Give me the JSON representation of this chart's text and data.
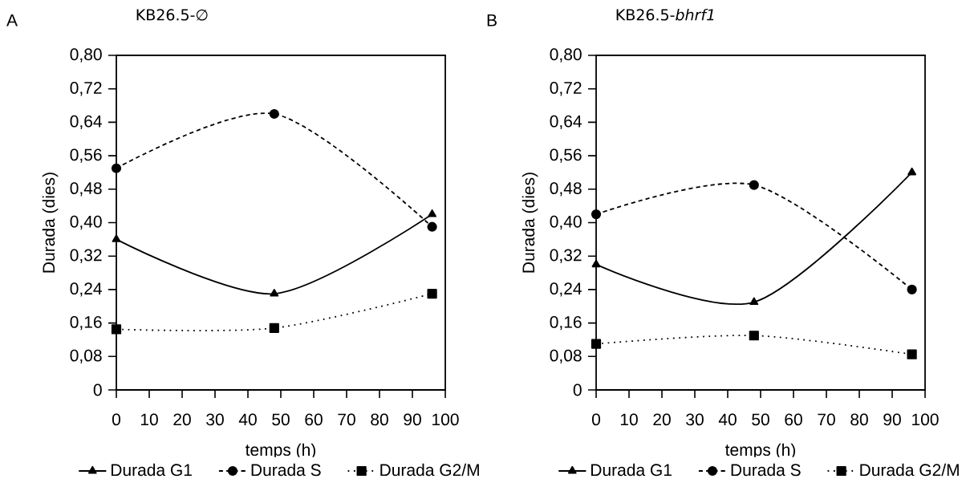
{
  "chart_data": [
    {
      "type": "line",
      "title": "KB26.5-∅",
      "xlabel": "temps (h)",
      "ylabel": "Durada (dies)",
      "annotations": [
        "A"
      ],
      "x": [
        0,
        48,
        96
      ],
      "xlim": [
        0,
        100
      ],
      "xticks": [
        0,
        10,
        20,
        30,
        40,
        50,
        60,
        70,
        80,
        90,
        100
      ],
      "ylim": [
        0,
        0.8
      ],
      "yticks": [
        0,
        {
          "value": 0.08,
          "label": "0,08"
        },
        {
          "value": 0.16,
          "label": "0,16"
        },
        {
          "value": 0.24,
          "label": "0,24"
        },
        {
          "value": 0.32,
          "label": "0,32"
        },
        {
          "value": 0.4,
          "label": "0,40"
        },
        {
          "value": 0.48,
          "label": "0,48"
        },
        {
          "value": 0.56,
          "label": "0,56"
        },
        {
          "value": 0.64,
          "label": "0,64"
        },
        {
          "value": 0.72,
          "label": "0,72"
        },
        {
          "value": 0.8,
          "label": "0,80"
        }
      ],
      "legend": "bottom",
      "series": [
        {
          "name": "Durada G1",
          "color": "#000000",
          "marker": "triangle",
          "line_style": "solid",
          "values": [
            0.36,
            0.23,
            0.42
          ]
        },
        {
          "name": "Durada S",
          "color": "#000000",
          "marker": "circle",
          "line_style": "dashed",
          "values": [
            0.53,
            0.66,
            0.39
          ]
        },
        {
          "name": "Durada G2/M",
          "color": "#000000",
          "marker": "square",
          "line_style": "dotted",
          "values": [
            0.145,
            0.148,
            0.23
          ]
        }
      ]
    },
    {
      "type": "line",
      "title": "KB26.5-*bhrf1*",
      "xlabel": "temps (h)",
      "ylabel": "Durada (dies)",
      "annotations": [
        "B"
      ],
      "x": [
        0,
        48,
        96
      ],
      "xlim": [
        0,
        100
      ],
      "xticks": [
        0,
        10,
        20,
        30,
        40,
        50,
        60,
        70,
        80,
        90,
        100
      ],
      "ylim": [
        0,
        0.8
      ],
      "yticks": [
        0,
        {
          "value": 0.08,
          "label": "0,08"
        },
        {
          "value": 0.16,
          "label": "0,16"
        },
        {
          "value": 0.24,
          "label": "0,24"
        },
        {
          "value": 0.32,
          "label": "0,32"
        },
        {
          "value": 0.4,
          "label": "0,40"
        },
        {
          "value": 0.48,
          "label": "0,48"
        },
        {
          "value": 0.56,
          "label": "0,56"
        },
        {
          "value": 0.64,
          "label": "0,64"
        },
        {
          "value": 0.72,
          "label": "0,72"
        },
        {
          "value": 0.8,
          "label": "0,80"
        }
      ],
      "legend": "bottom",
      "series": [
        {
          "name": "Durada G1",
          "color": "#000000",
          "marker": "triangle",
          "line_style": "solid",
          "values": [
            0.3,
            0.21,
            0.52
          ]
        },
        {
          "name": "Durada S",
          "color": "#000000",
          "marker": "circle",
          "line_style": "dashed",
          "values": [
            0.42,
            0.49,
            0.24
          ]
        },
        {
          "name": "Durada G2/M",
          "color": "#000000",
          "marker": "square",
          "line_style": "dotted",
          "values": [
            0.11,
            0.13,
            0.085
          ]
        }
      ]
    }
  ]
}
